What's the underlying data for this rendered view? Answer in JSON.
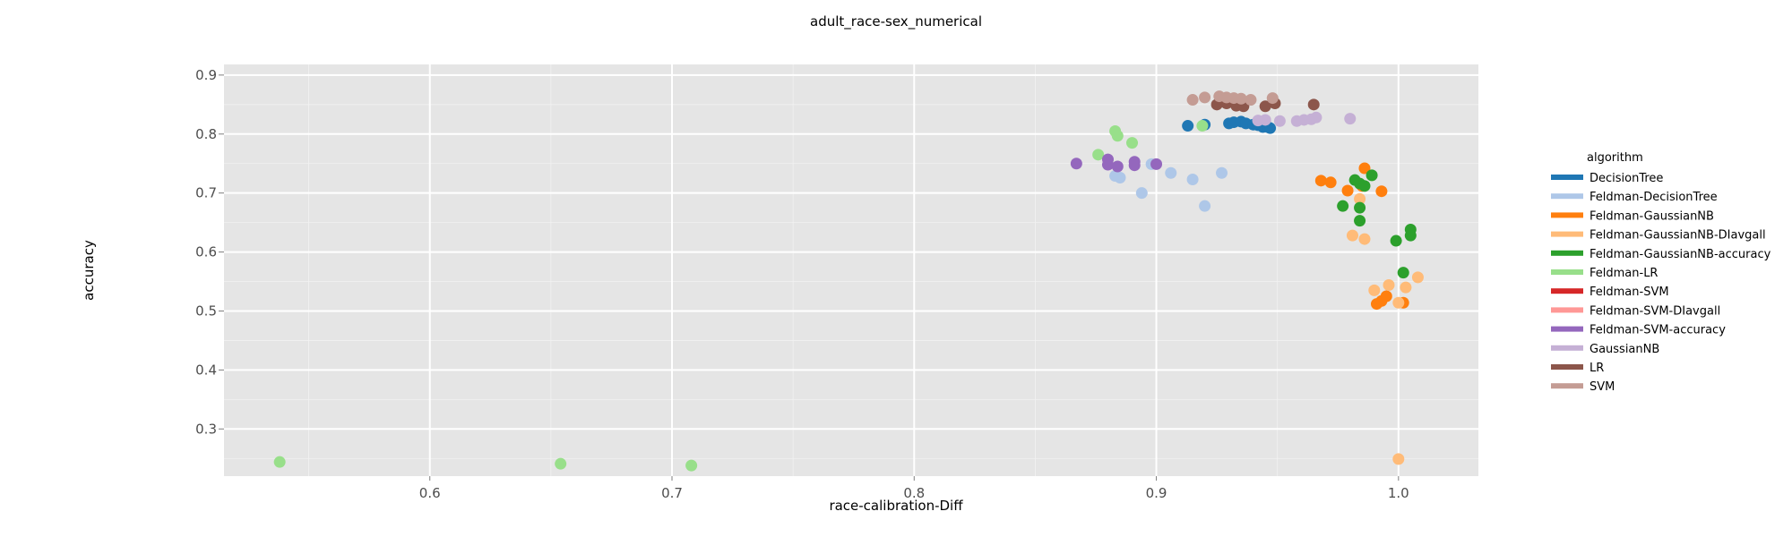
{
  "chart_data": {
    "type": "scatter",
    "title": "adult_race-sex_numerical",
    "xlabel": "race-calibration-Diff",
    "ylabel": "accuracy",
    "xlim": [
      0.515,
      1.033
    ],
    "ylim": [
      0.22,
      0.918
    ],
    "xticks": [
      0.6,
      0.7,
      0.8,
      0.9,
      1.0
    ],
    "xtick_labels": [
      "0.6",
      "0.7",
      "0.8",
      "0.9",
      "1.0"
    ],
    "yticks": [
      0.3,
      0.4,
      0.5,
      0.6,
      0.7,
      0.8,
      0.9
    ],
    "ytick_labels": [
      "0.3",
      "0.4",
      "0.5",
      "0.6",
      "0.7",
      "0.8",
      "0.9"
    ],
    "grid": true,
    "legend_position": "right",
    "legend_title": "algorithm",
    "series": [
      {
        "name": "DecisionTree",
        "color": "#1f77b4",
        "points": [
          [
            0.913,
            0.814
          ],
          [
            0.92,
            0.816
          ],
          [
            0.93,
            0.818
          ],
          [
            0.932,
            0.82
          ],
          [
            0.935,
            0.821
          ],
          [
            0.937,
            0.818
          ],
          [
            0.94,
            0.816
          ],
          [
            0.942,
            0.815
          ],
          [
            0.944,
            0.812
          ],
          [
            0.946,
            0.812
          ],
          [
            0.947,
            0.81
          ]
        ]
      },
      {
        "name": "Feldman-DecisionTree",
        "color": "#aec7e8",
        "points": [
          [
            0.883,
            0.729
          ],
          [
            0.885,
            0.726
          ],
          [
            0.894,
            0.7
          ],
          [
            0.898,
            0.749
          ],
          [
            0.906,
            0.734
          ],
          [
            0.915,
            0.723
          ],
          [
            0.92,
            0.678
          ],
          [
            0.927,
            0.734
          ]
        ]
      },
      {
        "name": "Feldman-GaussianNB",
        "color": "#ff7f0e",
        "points": [
          [
            0.968,
            0.721
          ],
          [
            0.972,
            0.718
          ],
          [
            0.979,
            0.704
          ],
          [
            0.985,
            0.712
          ],
          [
            0.986,
            0.742
          ],
          [
            0.993,
            0.703
          ],
          [
            0.991,
            0.512
          ],
          [
            0.993,
            0.517
          ],
          [
            0.995,
            0.525
          ],
          [
            1.002,
            0.514
          ]
        ]
      },
      {
        "name": "Feldman-GaussianNB-DIavgall",
        "color": "#ffbb78",
        "points": [
          [
            0.981,
            0.628
          ],
          [
            0.984,
            0.69
          ],
          [
            0.986,
            0.622
          ],
          [
            0.99,
            0.535
          ],
          [
            0.996,
            0.544
          ],
          [
            1.0,
            0.514
          ],
          [
            1.003,
            0.54
          ],
          [
            1.008,
            0.557
          ],
          [
            1.0,
            0.249
          ]
        ]
      },
      {
        "name": "Feldman-GaussianNB-accuracy",
        "color": "#2ca02c",
        "points": [
          [
            0.977,
            0.678
          ],
          [
            0.982,
            0.722
          ],
          [
            0.984,
            0.716
          ],
          [
            0.986,
            0.712
          ],
          [
            0.984,
            0.675
          ],
          [
            0.984,
            0.653
          ],
          [
            0.989,
            0.73
          ],
          [
            0.999,
            0.619
          ],
          [
            1.002,
            0.565
          ],
          [
            1.005,
            0.638
          ],
          [
            1.005,
            0.628
          ]
        ]
      },
      {
        "name": "Feldman-LR",
        "color": "#98df8a",
        "points": [
          [
            0.876,
            0.765
          ],
          [
            0.883,
            0.805
          ],
          [
            0.884,
            0.797
          ],
          [
            0.89,
            0.785
          ],
          [
            0.919,
            0.814
          ],
          [
            0.538,
            0.244
          ],
          [
            0.654,
            0.241
          ],
          [
            0.708,
            0.238
          ]
        ]
      },
      {
        "name": "Feldman-SVM",
        "color": "#d62728",
        "points": []
      },
      {
        "name": "Feldman-SVM-DIavgall",
        "color": "#ff9896",
        "points": []
      },
      {
        "name": "Feldman-SVM-accuracy",
        "color": "#9467bd",
        "points": [
          [
            0.867,
            0.75
          ],
          [
            0.88,
            0.757
          ],
          [
            0.88,
            0.748
          ],
          [
            0.884,
            0.745
          ],
          [
            0.891,
            0.753
          ],
          [
            0.891,
            0.747
          ],
          [
            0.9,
            0.749
          ]
        ]
      },
      {
        "name": "GaussianNB",
        "color": "#c5b0d5",
        "points": [
          [
            0.942,
            0.823
          ],
          [
            0.945,
            0.824
          ],
          [
            0.951,
            0.822
          ],
          [
            0.958,
            0.822
          ],
          [
            0.961,
            0.824
          ],
          [
            0.964,
            0.825
          ],
          [
            0.966,
            0.828
          ],
          [
            0.98,
            0.826
          ]
        ]
      },
      {
        "name": "LR",
        "color": "#8c564b",
        "points": [
          [
            0.925,
            0.85
          ],
          [
            0.929,
            0.852
          ],
          [
            0.933,
            0.848
          ],
          [
            0.936,
            0.847
          ],
          [
            0.945,
            0.847
          ],
          [
            0.949,
            0.852
          ],
          [
            0.965,
            0.85
          ]
        ]
      },
      {
        "name": "SVM",
        "color": "#c49c94",
        "points": [
          [
            0.915,
            0.858
          ],
          [
            0.92,
            0.862
          ],
          [
            0.926,
            0.864
          ],
          [
            0.929,
            0.862
          ],
          [
            0.932,
            0.861
          ],
          [
            0.935,
            0.86
          ],
          [
            0.939,
            0.858
          ],
          [
            0.948,
            0.861
          ]
        ]
      }
    ]
  }
}
